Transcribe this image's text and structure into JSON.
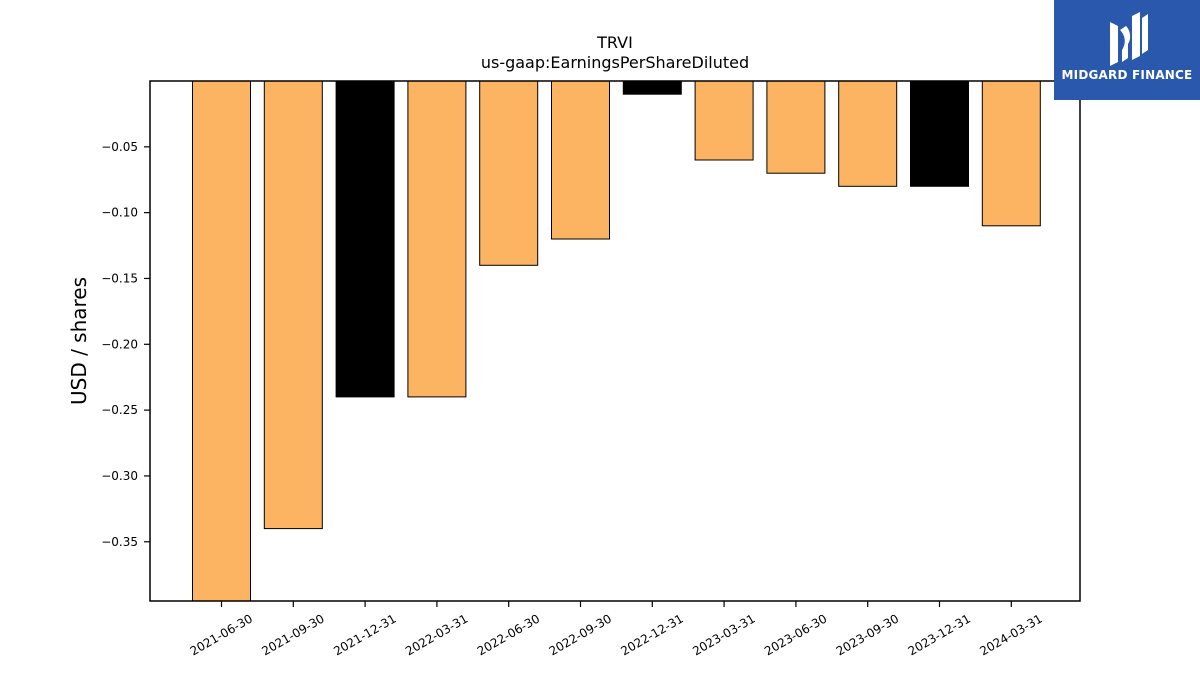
{
  "chart_data": {
    "type": "bar",
    "title": "TRVI",
    "subtitle": "us-gaap:EarningsPerShareDiluted",
    "ylabel": "USD / shares",
    "xlabel": "",
    "ylim": [
      -0.395,
      0.0
    ],
    "yticks": [
      -0.05,
      -0.1,
      -0.15,
      -0.2,
      -0.25,
      -0.3,
      -0.35
    ],
    "ytick_labels": [
      "−0.05",
      "−0.10",
      "−0.15",
      "−0.20",
      "−0.25",
      "−0.30",
      "−0.35"
    ],
    "grid": false,
    "categories": [
      "2021-06-30",
      "2021-09-30",
      "2021-12-31",
      "2022-03-31",
      "2022-06-30",
      "2022-09-30",
      "2022-12-31",
      "2023-03-31",
      "2023-06-30",
      "2023-09-30",
      "2023-12-31",
      "2024-03-31"
    ],
    "values": [
      -0.4,
      -0.34,
      -0.24,
      -0.24,
      -0.14,
      -0.12,
      -0.01,
      -0.06,
      -0.07,
      -0.08,
      -0.08,
      -0.11
    ],
    "bar_colors": [
      "#fdb462",
      "#fdb462",
      "#000000",
      "#fdb462",
      "#fdb462",
      "#fdb462",
      "#000000",
      "#fdb462",
      "#fdb462",
      "#fdb462",
      "#000000",
      "#fdb462"
    ]
  },
  "logo": {
    "text": "MIDGARD FINANCE",
    "icon": "midgard-logo-icon",
    "background": "#2a58ad"
  }
}
